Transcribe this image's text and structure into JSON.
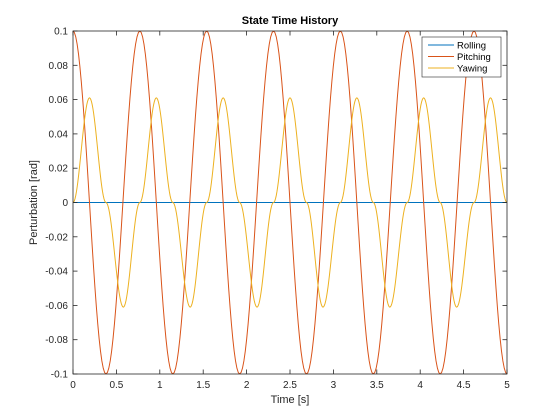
{
  "chart_data": {
    "type": "line",
    "title": "State Time History",
    "xlabel": "Time [s]",
    "ylabel": "Perturbation [rad]",
    "xlim": [
      0,
      5
    ],
    "ylim": [
      -0.1,
      0.1
    ],
    "grid": false,
    "legend_position": "top-right",
    "x_ticks": [
      "0",
      "0.5",
      "1",
      "1.5",
      "2",
      "2.5",
      "3",
      "3.5",
      "4",
      "4.5",
      "5"
    ],
    "y_ticks": [
      "-0.1",
      "-0.08",
      "-0.06",
      "-0.04",
      "-0.02",
      "0",
      "0.02",
      "0.04",
      "0.06",
      "0.08",
      "0.1"
    ],
    "series": [
      {
        "name": "Rolling",
        "color": "#0072BD",
        "x": [
          0,
          5
        ],
        "y": [
          0,
          0
        ]
      },
      {
        "name": "Pitching",
        "color": "#D95319",
        "x": [
          0,
          0.38,
          0.77,
          1.15,
          1.54,
          1.92,
          2.31,
          2.69,
          3.08,
          3.46,
          3.85,
          4.23,
          4.62,
          5.0
        ],
        "y": [
          0.1,
          -0.1,
          0.1,
          -0.1,
          0.1,
          -0.1,
          0.1,
          -0.1,
          0.1,
          -0.1,
          0.1,
          -0.1,
          0.1,
          -0.1
        ]
      },
      {
        "name": "Yawing",
        "color": "#EDB120",
        "x": [
          0,
          0.19,
          0.38,
          0.58,
          0.77,
          0.96,
          1.15,
          1.35,
          1.54,
          1.73,
          1.92,
          2.12,
          2.31,
          2.5,
          2.69,
          2.88,
          3.08,
          3.27,
          3.46,
          3.65,
          3.85,
          4.04,
          4.23,
          4.42,
          4.62,
          4.81,
          5.0
        ],
        "y": [
          0,
          0.061,
          0,
          -0.061,
          0,
          0.061,
          0,
          -0.061,
          0,
          0.061,
          0,
          -0.061,
          0,
          0.061,
          0,
          -0.061,
          0,
          0.061,
          0,
          -0.061,
          0,
          0.061,
          0,
          -0.061,
          0,
          0.061,
          0
        ]
      }
    ]
  }
}
